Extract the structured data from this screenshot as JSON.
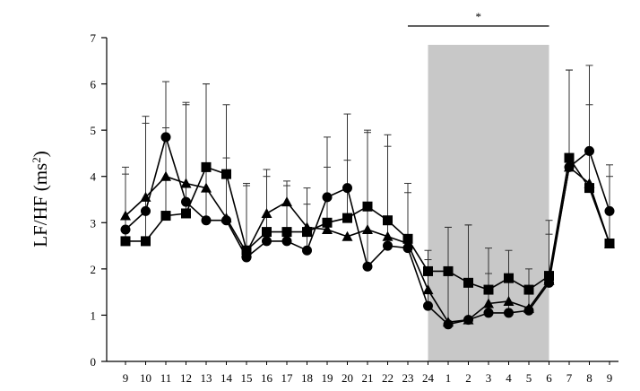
{
  "chart_data": {
    "type": "line",
    "title": "",
    "xlabel": "",
    "ylabel": "LF/HF (ms",
    "ylabel_sup": "2",
    "ylabel_close": ")",
    "ylim": [
      0,
      7
    ],
    "yticks": [
      "0",
      "1",
      "2",
      "3",
      "4",
      "5",
      "6",
      "7"
    ],
    "categories": [
      "9",
      "10",
      "11",
      "12",
      "13",
      "14",
      "15",
      "16",
      "17",
      "18",
      "19",
      "20",
      "21",
      "22",
      "23",
      "24",
      "1",
      "2",
      "3",
      "4",
      "5",
      "6",
      "7",
      "8",
      "9"
    ],
    "shaded_range": [
      "24",
      "6"
    ],
    "shaded_color": "#c8c8c8",
    "significance_bar": {
      "from": "23",
      "to": "6",
      "label": "*"
    },
    "grid": false,
    "series": [
      {
        "marker": "circle",
        "values": [
          2.85,
          3.25,
          4.85,
          3.45,
          3.05,
          3.05,
          2.25,
          2.6,
          2.6,
          2.4,
          3.55,
          3.75,
          2.05,
          2.5,
          2.45,
          1.2,
          0.8,
          0.9,
          1.05,
          1.05,
          1.1,
          1.7,
          4.2,
          4.55,
          3.25
        ],
        "errors": [
          1.2,
          1.9,
          1.2,
          2.1,
          2.95,
          1.35,
          1.6,
          1.55,
          1.3,
          1.0,
          1.3,
          1.6,
          2.95,
          2.4,
          1.4,
          1.0,
          2.1,
          2.05,
          0.85,
          0.7,
          0.4,
          1.35,
          2.1,
          1.85,
          1.0
        ]
      },
      {
        "marker": "triangle",
        "values": [
          3.15,
          3.55,
          4.0,
          3.85,
          3.75,
          3.1,
          2.35,
          3.2,
          3.45,
          2.9,
          2.85,
          2.7,
          2.85,
          2.7,
          2.55,
          1.55,
          0.85,
          0.9,
          1.25,
          1.3,
          1.15,
          1.75,
          4.2,
          3.85,
          2.55
        ]
      },
      {
        "marker": "square",
        "values": [
          2.6,
          2.6,
          3.15,
          3.2,
          4.2,
          4.05,
          2.4,
          2.8,
          2.8,
          2.8,
          3.0,
          3.1,
          3.35,
          3.05,
          2.65,
          1.95,
          1.95,
          1.7,
          1.55,
          1.8,
          1.55,
          1.85,
          4.4,
          3.75,
          2.55
        ],
        "errors": [
          1.6,
          2.7,
          1.9,
          2.4,
          1.8,
          1.5,
          1.4,
          1.2,
          1.0,
          0.95,
          1.2,
          1.25,
          1.6,
          1.6,
          1.0,
          0.45,
          0.95,
          1.25,
          0.9,
          0.6,
          0.45,
          0.9,
          1.9,
          1.8,
          1.45
        ]
      }
    ]
  }
}
